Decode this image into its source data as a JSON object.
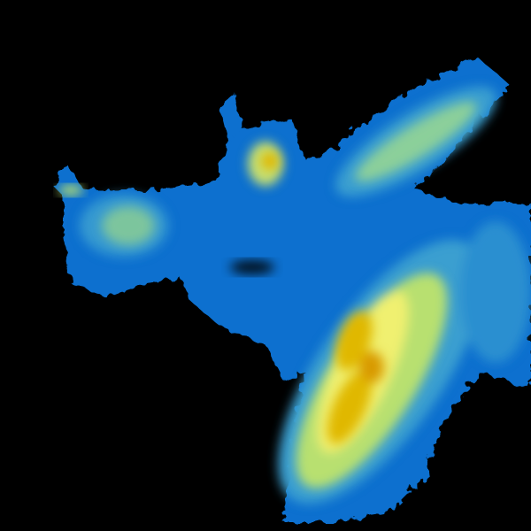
{
  "image": {
    "kind": "weather-radar-reflectivity",
    "background_color": "#000000",
    "colors": {
      "light": "#0a6fcf",
      "moderate": "#3a9fd0",
      "teal": "#5ab9a8",
      "green_yellow": "#b8e070",
      "yellow": "#f0f070",
      "gold": "#e0b800",
      "orange": "#d89a00"
    }
  }
}
